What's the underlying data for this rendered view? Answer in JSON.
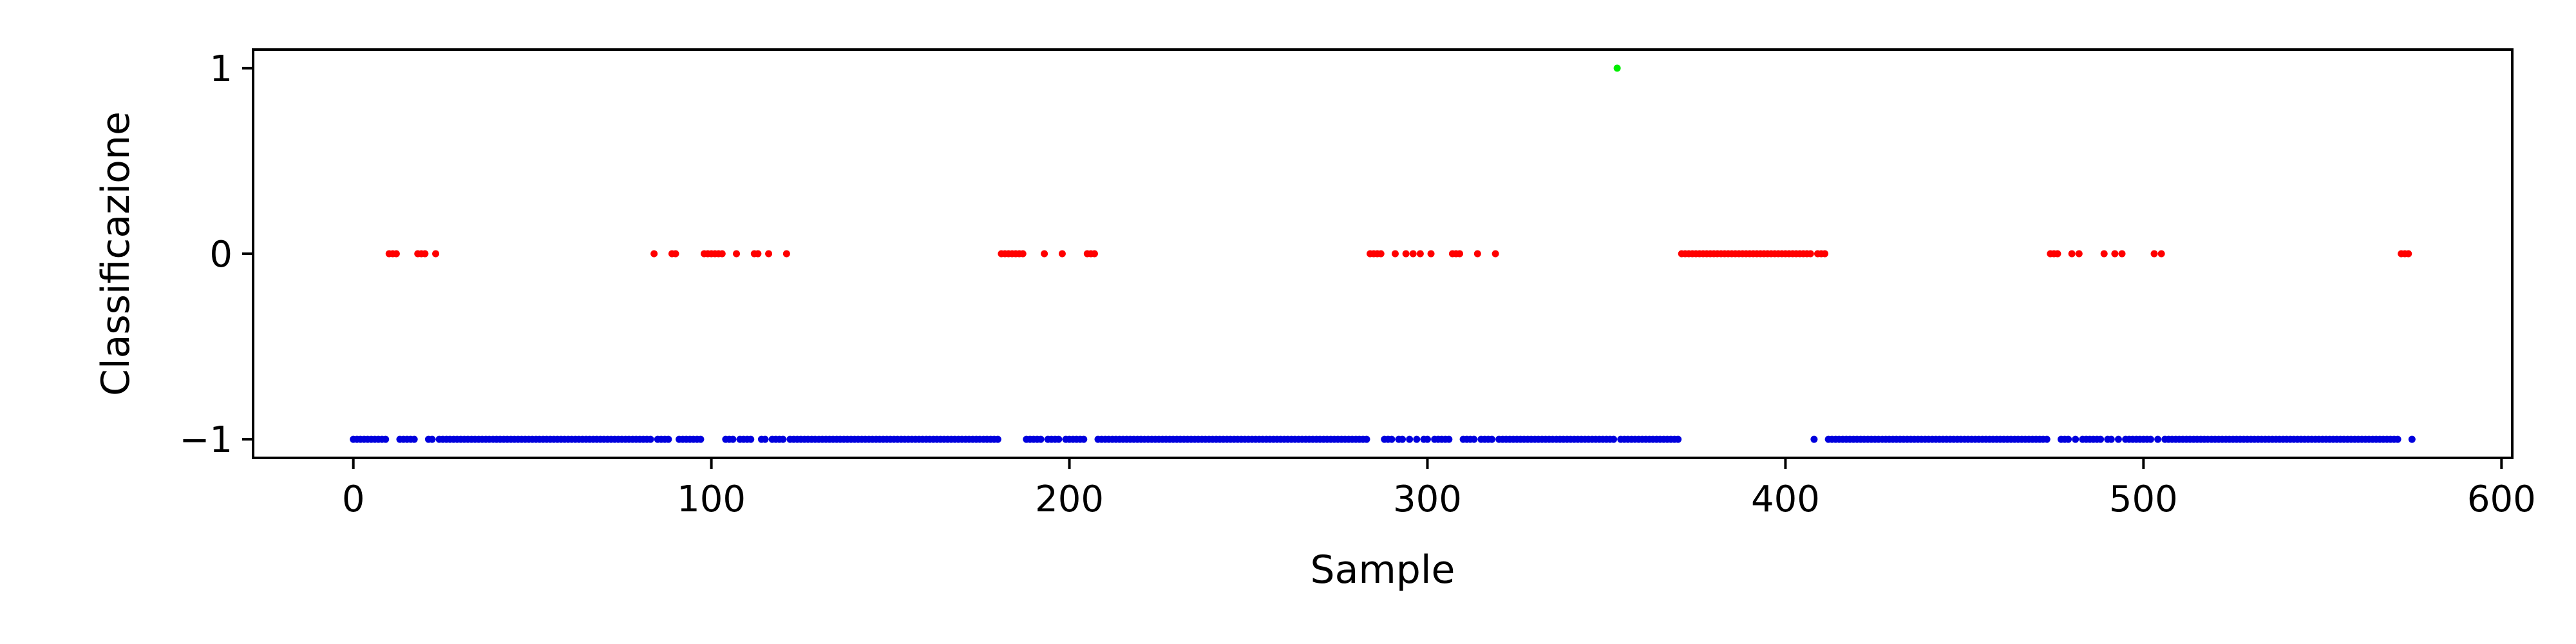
{
  "chart_data": {
    "type": "scatter",
    "xlabel": "Sample",
    "ylabel": "Classificazione",
    "xlim": [
      -28,
      603
    ],
    "ylim": [
      -1.1,
      1.1
    ],
    "xticks": [
      0,
      100,
      200,
      300,
      400,
      500,
      600
    ],
    "yticks": [
      -1,
      0,
      1
    ],
    "xtick_labels": [
      "0",
      "100",
      "200",
      "300",
      "400",
      "500",
      "600"
    ],
    "ytick_labels": [
      "−1",
      "0",
      "1"
    ],
    "grid": false,
    "n_samples": 576,
    "series": [
      {
        "value": 0,
        "color": "#ff0000",
        "x": [
          10,
          11,
          12,
          18,
          19,
          20,
          23,
          84,
          89,
          90,
          98,
          99,
          100,
          101,
          102,
          103,
          107,
          112,
          113,
          116,
          121,
          181,
          182,
          183,
          184,
          185,
          186,
          187,
          193,
          198,
          205,
          206,
          207,
          284,
          285,
          286,
          287,
          291,
          294,
          296,
          298,
          301,
          307,
          308,
          309,
          314,
          319,
          371,
          372,
          373,
          374,
          375,
          376,
          377,
          378,
          379,
          380,
          381,
          382,
          383,
          384,
          385,
          386,
          387,
          388,
          389,
          390,
          391,
          392,
          393,
          394,
          395,
          396,
          397,
          398,
          399,
          400,
          401,
          402,
          403,
          404,
          405,
          406,
          407,
          409,
          410,
          411,
          474,
          475,
          476,
          480,
          482,
          489,
          492,
          494,
          503,
          505,
          572,
          573,
          574
        ]
      },
      {
        "value": 1,
        "color": "#00ee00",
        "x": [
          353
        ]
      },
      {
        "value": -1,
        "color": "#0000dd",
        "x": "all remaining samples (0–575)"
      }
    ]
  }
}
